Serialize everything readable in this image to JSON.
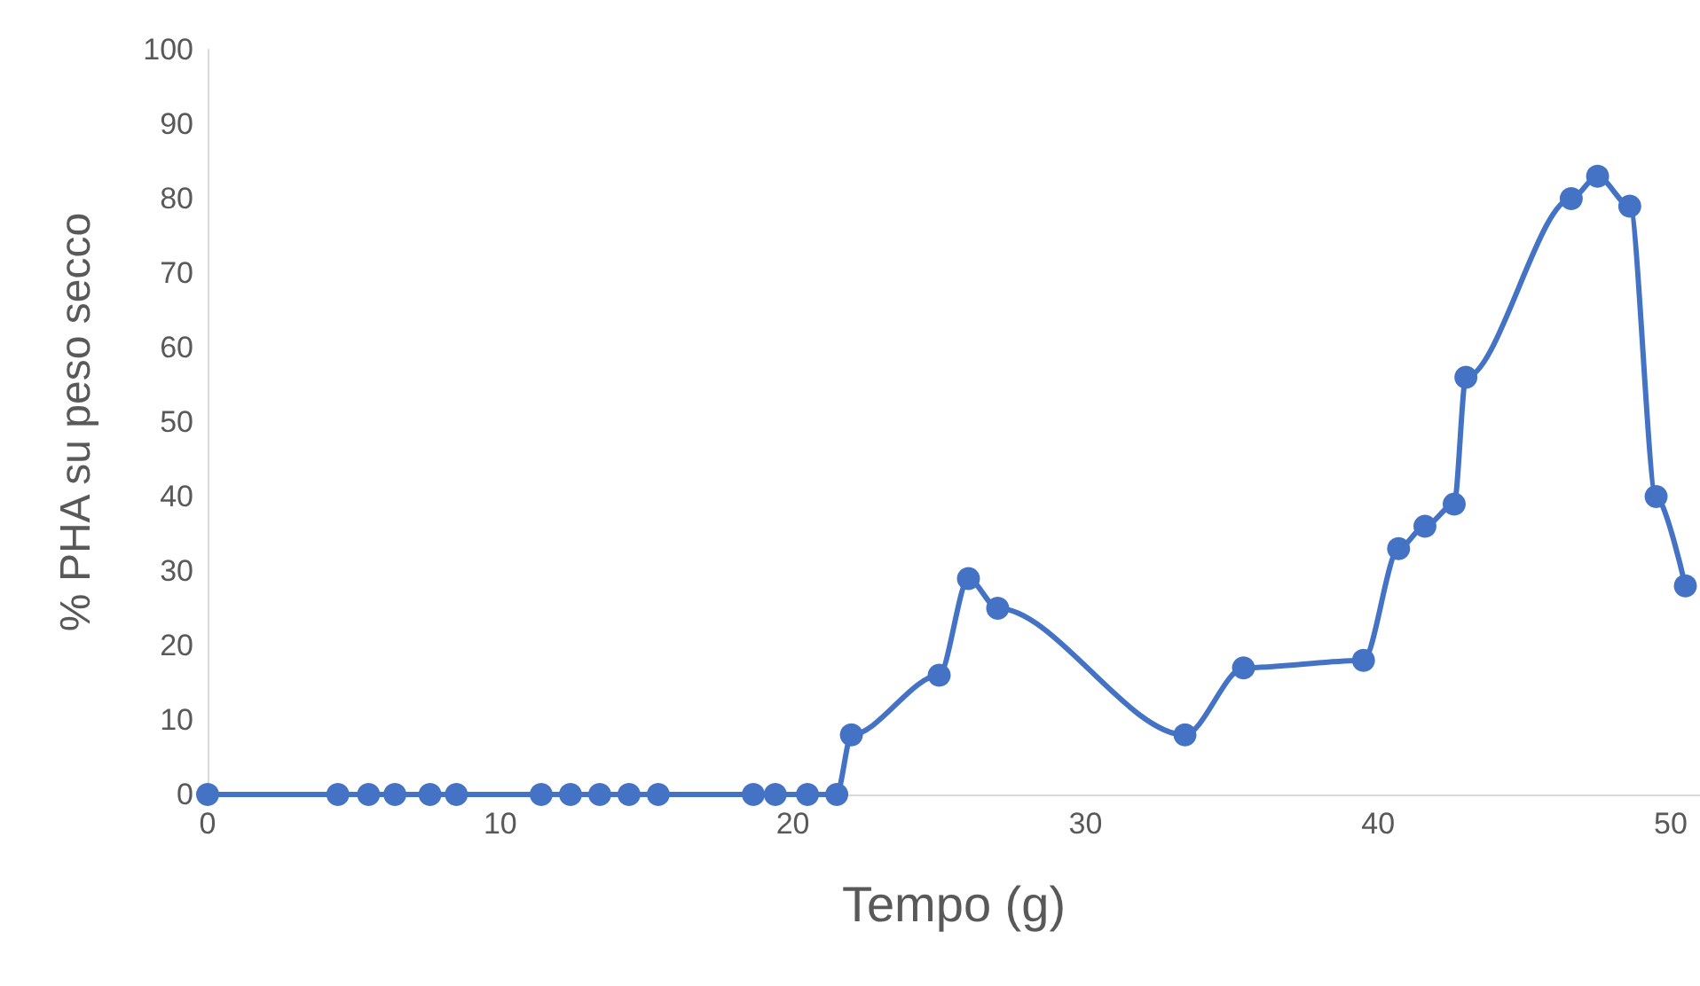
{
  "chart_data": {
    "type": "line",
    "xlabel": "Tempo (g)",
    "ylabel": "% PHA su peso secco",
    "x": [
      0,
      4.45,
      5.5,
      6.4,
      7.6,
      8.5,
      11.4,
      12.4,
      13.4,
      14.4,
      15.4,
      18.65,
      19.4,
      20.5,
      21.5,
      22.0,
      25.0,
      26.0,
      27.0,
      33.4,
      35.4,
      39.5,
      40.7,
      41.6,
      42.6,
      43.0,
      46.6,
      47.5,
      48.6,
      49.5,
      50.5
    ],
    "series": [
      {
        "color": "#4472c4",
        "values": [
          0,
          0,
          0,
          0,
          0,
          0,
          0,
          0,
          0,
          0,
          0,
          0,
          0,
          0,
          0,
          8,
          16,
          29,
          25,
          8,
          17,
          18,
          33,
          36,
          39,
          56,
          80,
          83,
          79,
          40,
          28
        ]
      }
    ],
    "xlim": [
      0,
      51
    ],
    "xticks": [
      0,
      10,
      20,
      30,
      40,
      50
    ],
    "ylim": [
      0,
      100
    ],
    "yticks": [
      0,
      10,
      20,
      30,
      40,
      50,
      60,
      70,
      80,
      90,
      100
    ],
    "grid": false,
    "marker": "circle",
    "line_style": "solid"
  }
}
